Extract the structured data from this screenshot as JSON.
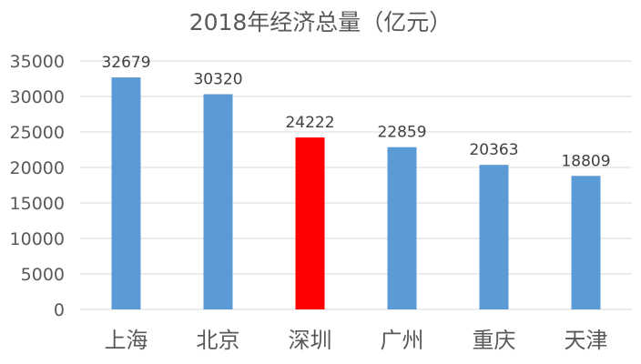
{
  "chart_data": {
    "type": "bar",
    "title": "2018年经济总量（亿元）",
    "xlabel": "",
    "ylabel": "",
    "categories": [
      "上海",
      "北京",
      "深圳",
      "广州",
      "重庆",
      "天津"
    ],
    "values": [
      32679,
      30320,
      24222,
      22859,
      20363,
      18809
    ],
    "data_labels": [
      "32679",
      "30320",
      "24222",
      "22859",
      "20363",
      "18809"
    ],
    "bar_colors": [
      "#5b9bd5",
      "#5b9bd5",
      "#ff0000",
      "#5b9bd5",
      "#5b9bd5",
      "#5b9bd5"
    ],
    "ylim": [
      0,
      35000
    ],
    "y_ticks": [
      0,
      5000,
      10000,
      15000,
      20000,
      25000,
      30000,
      35000
    ],
    "y_tick_labels": [
      "0",
      "5000",
      "10000",
      "15000",
      "20000",
      "25000",
      "30000",
      "35000"
    ],
    "grid": true,
    "legend": "none"
  }
}
